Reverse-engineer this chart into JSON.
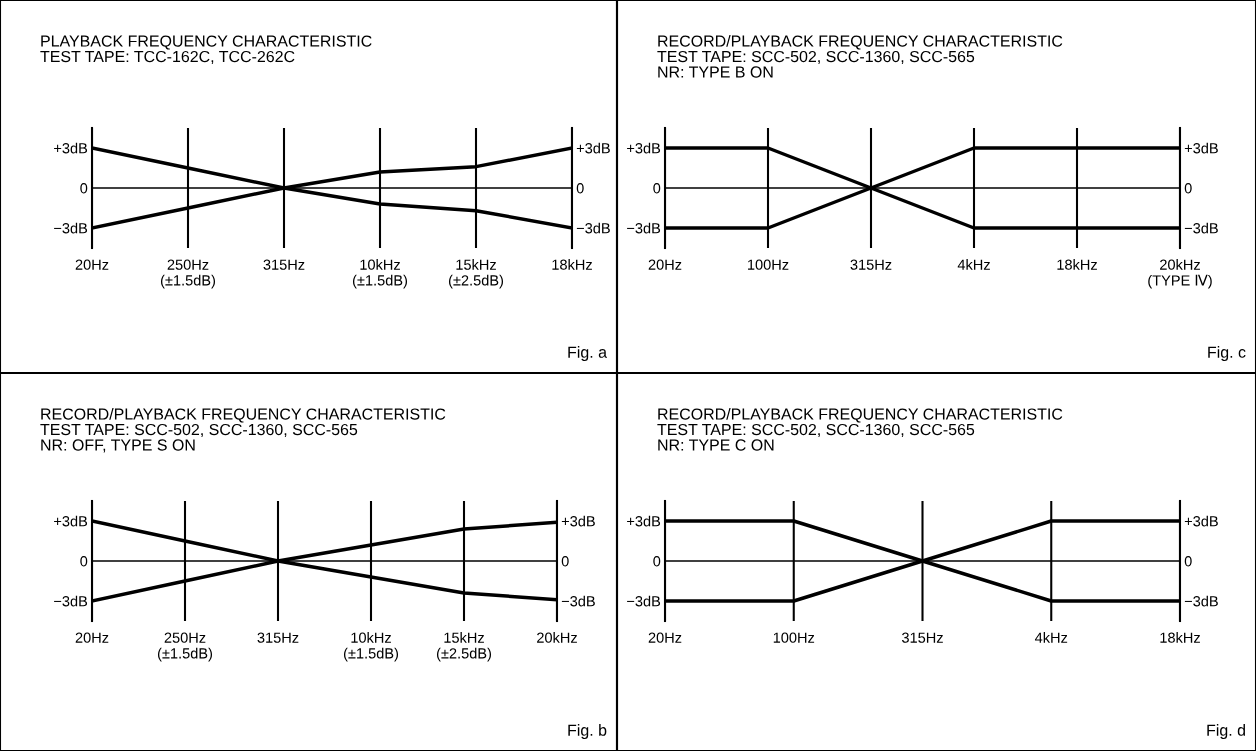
{
  "chart_data": [
    {
      "type": "line",
      "title": "PLAYBACK FREQUENCY CHARACTERISTIC\nTEST TAPE: TCC-162C, TCC-262C",
      "categories": [
        "20Hz",
        "250Hz\n(±1.5dB)",
        "315Hz",
        "10kHz\n(±1.5dB)",
        "15kHz\n(±2.5dB)",
        "18kHz"
      ],
      "ylim": [
        -4.5,
        4.5
      ],
      "yticks": [
        {
          "value": 3,
          "label": "+3dB"
        },
        {
          "value": 0,
          "label": "0"
        },
        {
          "value": -3,
          "label": "−3dB"
        }
      ],
      "y2lim": [
        -4.5,
        4.5
      ],
      "y2ticks": [
        {
          "value": 3,
          "label": "+3dB"
        },
        {
          "value": 0,
          "label": "0"
        },
        {
          "value": -3,
          "label": "−3dB"
        }
      ],
      "grid": "x",
      "ref_lines": [
        {
          "axis": "y",
          "value": 0,
          "color": "#000000"
        }
      ],
      "series": [
        {
          "color": "#000000",
          "values": [
            3,
            1.5,
            0,
            1.2,
            1.6,
            3
          ]
        },
        {
          "color": "#000000",
          "values": [
            -3,
            -1.5,
            0,
            -1.2,
            -1.7,
            -3
          ]
        }
      ],
      "annotations": [
        "Fig. a"
      ]
    },
    {
      "type": "line",
      "title": "RECORD/PLAYBACK FREQUENCY CHARACTERISTIC\nTEST TAPE: SCC-502, SCC-1360, SCC-565\nNR: TYPE B ON",
      "categories": [
        "20Hz",
        "100Hz",
        "315Hz",
        "4kHz",
        "18kHz",
        "20kHz\n(TYPE Ⅳ)"
      ],
      "ylim": [
        -4.5,
        4.5
      ],
      "yticks": [
        {
          "value": 3,
          "label": "+3dB"
        },
        {
          "value": 0,
          "label": "0"
        },
        {
          "value": -3,
          "label": "−3dB"
        }
      ],
      "y2lim": [
        -4.5,
        4.5
      ],
      "y2ticks": [
        {
          "value": 3,
          "label": "+3dB"
        },
        {
          "value": 0,
          "label": "0"
        },
        {
          "value": -3,
          "label": "−3dB"
        }
      ],
      "grid": "x",
      "ref_lines": [
        {
          "axis": "y",
          "value": 0,
          "color": "#000000"
        }
      ],
      "series": [
        {
          "color": "#000000",
          "values": [
            3,
            3,
            0,
            3,
            3,
            3
          ]
        },
        {
          "color": "#000000",
          "values": [
            -3,
            -3,
            0,
            -3,
            -3,
            -3
          ]
        }
      ],
      "annotations": [
        "Fig. c"
      ]
    },
    {
      "type": "line",
      "title": "RECORD/PLAYBACK FREQUENCY CHARACTERISTIC\nTEST TAPE: SCC-502, SCC-1360, SCC-565\nNR: OFF, TYPE S ON",
      "categories": [
        "20Hz",
        "250Hz\n(±1.5dB)",
        "315Hz",
        "10kHz\n(±1.5dB)",
        "15kHz\n(±2.5dB)",
        "20kHz"
      ],
      "ylim": [
        -4.5,
        4.5
      ],
      "yticks": [
        {
          "value": 3,
          "label": "+3dB"
        },
        {
          "value": 0,
          "label": "0"
        },
        {
          "value": -3,
          "label": "−3dB"
        }
      ],
      "y2lim": [
        -4.5,
        4.5
      ],
      "y2ticks": [
        {
          "value": 3,
          "label": "+3dB"
        },
        {
          "value": 0,
          "label": "0"
        },
        {
          "value": -3,
          "label": "−3dB"
        }
      ],
      "grid": "x",
      "ref_lines": [
        {
          "axis": "y",
          "value": 0,
          "color": "#000000"
        }
      ],
      "series": [
        {
          "color": "#000000",
          "values": [
            3,
            1.5,
            0,
            1.2,
            2.4,
            2.9
          ]
        },
        {
          "color": "#000000",
          "values": [
            -3,
            -1.5,
            0,
            -1.2,
            -2.4,
            -2.9
          ]
        }
      ],
      "annotations": [
        "Fig. b"
      ]
    },
    {
      "type": "line",
      "title": "RECORD/PLAYBACK FREQUENCY CHARACTERISTIC\nTEST TAPE: SCC-502, SCC-1360, SCC-565\nNR: TYPE C ON",
      "categories": [
        "20Hz",
        "100Hz",
        "315Hz",
        "4kHz",
        "18kHz"
      ],
      "ylim": [
        -4.5,
        4.5
      ],
      "yticks": [
        {
          "value": 3,
          "label": "+3dB"
        },
        {
          "value": 0,
          "label": "0"
        },
        {
          "value": -3,
          "label": "−3dB"
        }
      ],
      "y2lim": [
        -4.5,
        4.5
      ],
      "y2ticks": [
        {
          "value": 3,
          "label": "+3dB"
        },
        {
          "value": 0,
          "label": "0"
        },
        {
          "value": -3,
          "label": "−3dB"
        }
      ],
      "grid": "x",
      "ref_lines": [
        {
          "axis": "y",
          "value": 0,
          "color": "#000000"
        }
      ],
      "series": [
        {
          "color": "#000000",
          "values": [
            3,
            3,
            0,
            3,
            3
          ]
        },
        {
          "color": "#000000",
          "values": [
            -3,
            -3,
            0,
            -3,
            -3
          ]
        }
      ],
      "annotations": [
        "Fig. d"
      ]
    }
  ]
}
